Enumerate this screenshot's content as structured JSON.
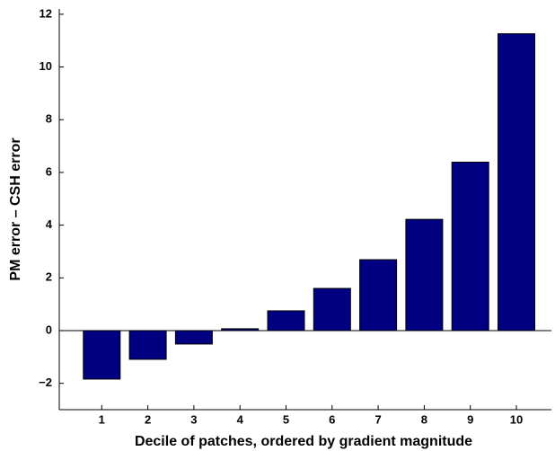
{
  "chart_data": {
    "type": "bar",
    "x_label": "Decile of patches, ordered by gradient magnitude",
    "y_label": "PM error – CSH error",
    "categories": [
      "1",
      "2",
      "3",
      "4",
      "5",
      "6",
      "7",
      "8",
      "9",
      "10"
    ],
    "values": [
      -1.84,
      -1.09,
      -0.51,
      0.07,
      0.75,
      1.6,
      2.69,
      4.22,
      6.39,
      11.26
    ],
    "color": "#000080",
    "ylim": [
      -3,
      12.2
    ],
    "yticks": [
      {
        "value": -2,
        "label": "−2"
      },
      0,
      2,
      4,
      6,
      8,
      10,
      12
    ],
    "grid": false
  }
}
